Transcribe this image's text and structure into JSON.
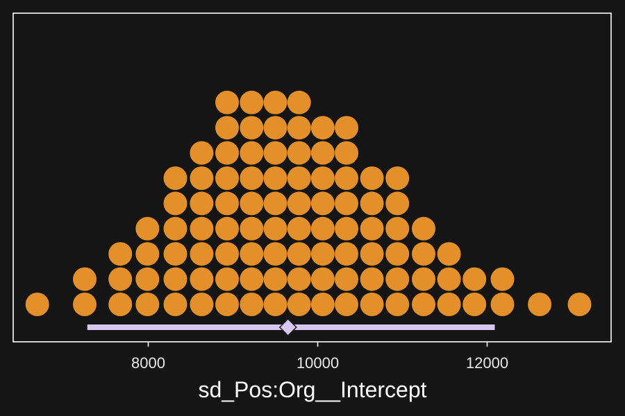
{
  "chart_data": {
    "type": "dotplot",
    "xlabel": "sd_Pos:Org__Intercept",
    "ylabel": "",
    "xlim": [
      6600,
      13300
    ],
    "x_ticks": [
      8000,
      10000,
      12000
    ],
    "x_tick_labels": [
      "8000",
      "10000",
      "12000"
    ],
    "grid": false,
    "legend": "none",
    "bins": [
      {
        "x": 6690,
        "count": 1
      },
      {
        "x": 7250,
        "count": 2
      },
      {
        "x": 7670,
        "count": 3
      },
      {
        "x": 7990,
        "count": 4
      },
      {
        "x": 8320,
        "count": 6
      },
      {
        "x": 8630,
        "count": 7
      },
      {
        "x": 8930,
        "count": 9
      },
      {
        "x": 9220,
        "count": 9
      },
      {
        "x": 9500,
        "count": 9
      },
      {
        "x": 9780,
        "count": 9
      },
      {
        "x": 10060,
        "count": 8
      },
      {
        "x": 10340,
        "count": 8
      },
      {
        "x": 10640,
        "count": 6
      },
      {
        "x": 10940,
        "count": 6
      },
      {
        "x": 11250,
        "count": 4
      },
      {
        "x": 11550,
        "count": 3
      },
      {
        "x": 11850,
        "count": 2
      },
      {
        "x": 12180,
        "count": 2
      },
      {
        "x": 12620,
        "count": 1
      },
      {
        "x": 13090,
        "count": 1
      }
    ],
    "interval": {
      "low": 7280,
      "high": 12090,
      "point": 9650
    }
  },
  "colors": {
    "background": "#151515",
    "panel_border": "#ffffff",
    "dot_fill": "#e3902a",
    "interval": "#d7c8f1",
    "text": "#e8e8e8"
  }
}
